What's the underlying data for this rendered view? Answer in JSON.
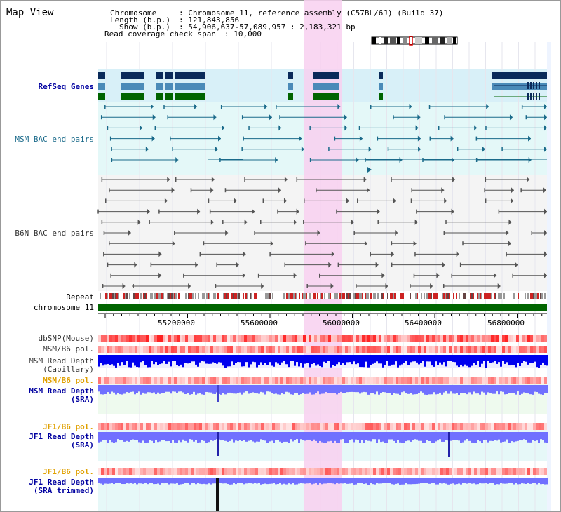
{
  "view_title": "Map View",
  "info": {
    "chromosome_label": "Chromosome",
    "chromosome_value": ": Chromosome 11, reference assembly (C57BL/6J) (Build 37)",
    "length_label": "Length (b.p.)",
    "length_value": ": 121,843,856",
    "show_label": "Show (b.p.)",
    "show_value": ": 54,906,637-57,089,957 : 2,183,321 bp",
    "coverage_label": "Read coverage check span",
    "coverage_value": ": 10,000"
  },
  "tracks": {
    "refseq": "RefSeq Genes",
    "msm_bac": "MSM BAC end pairs",
    "b6n_bac": "B6N BAC end pairs",
    "repeat": "Repeat",
    "chromosome": "chromosome 11",
    "dbsnp": "dbSNP(Mouse)",
    "msm_b6_pol_1": "MSM/B6 pol.",
    "msm_depth_cap_1": "MSM Read Depth",
    "msm_depth_cap_2": "(Capillary)",
    "msm_b6_pol_2": "MSM/B6 pol.",
    "msm_depth_sra_1": "MSM Read Depth",
    "msm_depth_sra_2": "(SRA)",
    "jf1_b6_pol_1": "JF1/B6 pol.",
    "jf1_depth_sra_1": "JF1 Read Depth",
    "jf1_depth_sra_2": "(SRA)",
    "jf1_b6_pol_2": "JF1/B6 pol.",
    "jf1_depth_trim_1": "JF1 Read Depth",
    "jf1_depth_trim_2": "(SRA trimmed)"
  },
  "axis_ticks": [
    "55200000",
    "55600000",
    "56000000",
    "56400000",
    "56800000"
  ],
  "colors": {
    "refseq_dark": "#0a2a5a",
    "refseq_mid": "#4a8ab8",
    "refseq_green": "#006400",
    "msm_bac_line": "#1a6a8a",
    "b6n_bac_line": "#555555",
    "highlight": "#f8d0f0",
    "chromosome_bar": "#006400",
    "snp_red": "#ff3030",
    "depth_blue": "#0000ee",
    "depth_light": "#7070ff"
  }
}
